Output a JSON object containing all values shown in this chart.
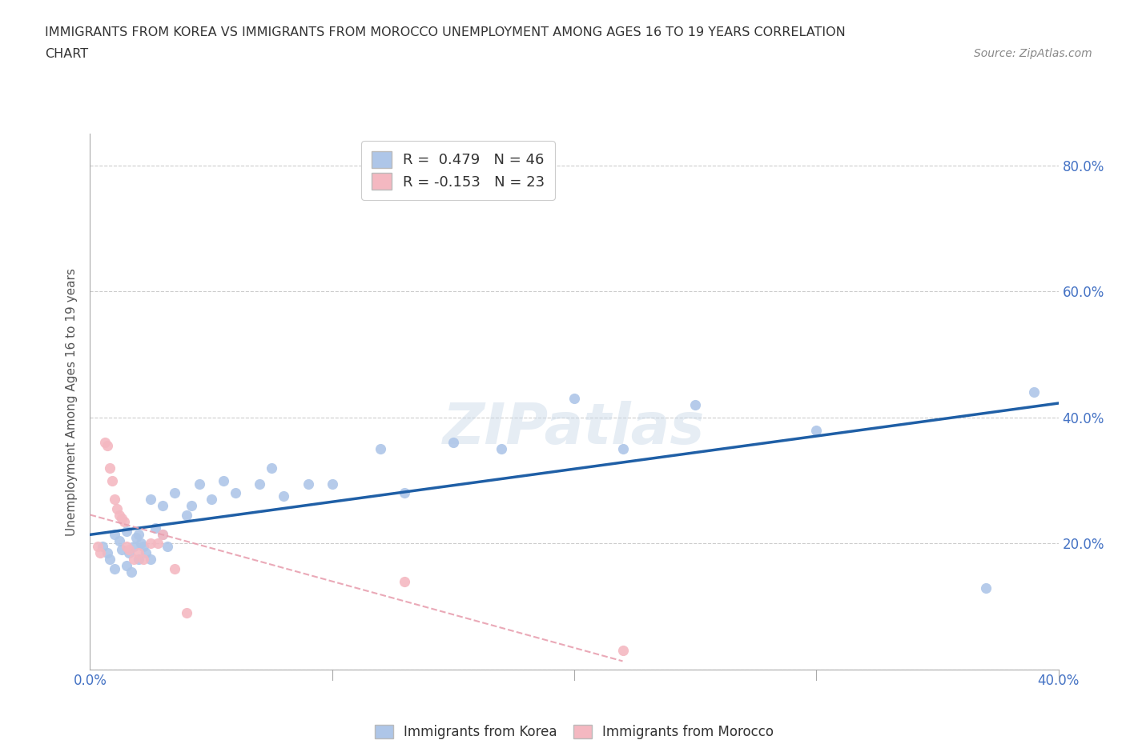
{
  "title_line1": "IMMIGRANTS FROM KOREA VS IMMIGRANTS FROM MOROCCO UNEMPLOYMENT AMONG AGES 16 TO 19 YEARS CORRELATION",
  "title_line2": "CHART",
  "source": "Source: ZipAtlas.com",
  "ylabel": "Unemployment Among Ages 16 to 19 years",
  "xlim": [
    0.0,
    0.4
  ],
  "ylim": [
    0.0,
    0.85
  ],
  "xticks": [
    0.0,
    0.1,
    0.2,
    0.3,
    0.4
  ],
  "yticks": [
    0.0,
    0.2,
    0.4,
    0.6,
    0.8
  ],
  "korea_R": 0.479,
  "korea_N": 46,
  "morocco_R": -0.153,
  "morocco_N": 23,
  "korea_color": "#aec6e8",
  "morocco_color": "#f4b8c1",
  "korea_line_color": "#1f5fa6",
  "morocco_line_color": "#e8a0b0",
  "watermark": "ZIPatlas",
  "korea_x": [
    0.005,
    0.007,
    0.008,
    0.01,
    0.01,
    0.012,
    0.013,
    0.015,
    0.015,
    0.016,
    0.017,
    0.018,
    0.019,
    0.02,
    0.02,
    0.021,
    0.022,
    0.023,
    0.025,
    0.025,
    0.027,
    0.03,
    0.03,
    0.032,
    0.035,
    0.04,
    0.042,
    0.045,
    0.05,
    0.055,
    0.06,
    0.07,
    0.075,
    0.08,
    0.09,
    0.1,
    0.12,
    0.13,
    0.15,
    0.17,
    0.2,
    0.22,
    0.25,
    0.3,
    0.37,
    0.39
  ],
  "korea_y": [
    0.195,
    0.185,
    0.175,
    0.215,
    0.16,
    0.205,
    0.19,
    0.22,
    0.165,
    0.185,
    0.155,
    0.195,
    0.21,
    0.175,
    0.215,
    0.2,
    0.195,
    0.185,
    0.27,
    0.175,
    0.225,
    0.26,
    0.215,
    0.195,
    0.28,
    0.245,
    0.26,
    0.295,
    0.27,
    0.3,
    0.28,
    0.295,
    0.32,
    0.275,
    0.295,
    0.295,
    0.35,
    0.28,
    0.36,
    0.35,
    0.43,
    0.35,
    0.42,
    0.38,
    0.13,
    0.44
  ],
  "morocco_x": [
    0.003,
    0.004,
    0.006,
    0.007,
    0.008,
    0.009,
    0.01,
    0.011,
    0.012,
    0.013,
    0.014,
    0.015,
    0.016,
    0.018,
    0.02,
    0.022,
    0.025,
    0.028,
    0.03,
    0.035,
    0.04,
    0.13,
    0.22
  ],
  "morocco_y": [
    0.195,
    0.185,
    0.36,
    0.355,
    0.32,
    0.3,
    0.27,
    0.255,
    0.245,
    0.24,
    0.235,
    0.195,
    0.19,
    0.175,
    0.185,
    0.175,
    0.2,
    0.2,
    0.215,
    0.16,
    0.09,
    0.14,
    0.03
  ],
  "grid_color": "#cccccc",
  "bg_color": "#ffffff",
  "tick_color": "#4472c4"
}
